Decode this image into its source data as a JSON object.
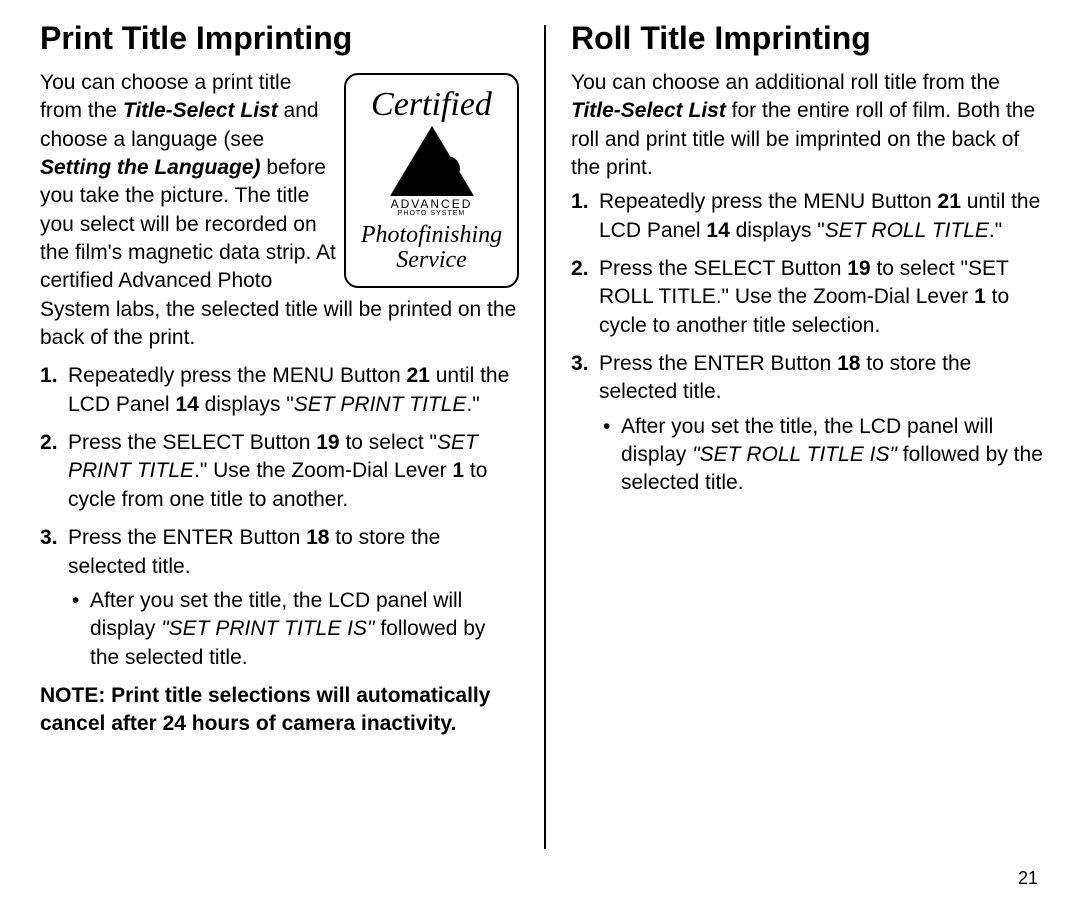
{
  "page_number": "21",
  "left": {
    "heading": "Print Title Imprinting",
    "intro_a": "You can choose a print title from the ",
    "intro_b": "Title-Select List",
    "intro_c": " and choose a language (see ",
    "intro_d": "Setting the Language)",
    "intro_e": " before you take the picture. The title you select will be recorded on the film's magnetic data strip. At certified Advanced Photo System labs, the selected title will be printed on the back of the print.",
    "logo": {
      "certified": "Certified",
      "advanced": "ADVANCED",
      "photo_system": "PHOTO SYSTEM",
      "tm": "™",
      "photofinishing": "Photofinishing",
      "service": "Service"
    },
    "s1a": "Repeatedly press the MENU Button ",
    "s1b": "21",
    "s1c": " until the LCD Panel ",
    "s1d": "14",
    "s1e": " displays \"",
    "s1f": "SET PRINT TITLE",
    "s1g": ".\"",
    "s2a": "Press the SELECT Button ",
    "s2b": "19",
    "s2c": " to select \"",
    "s2d": "SET PRINT TITLE",
    "s2e": ".\" Use the Zoom-Dial Lever ",
    "s2f": "1",
    "s2g": " to cycle from one title to another.",
    "s3a": "Press the ENTER Button ",
    "s3b": "18",
    "s3c": " to store the selected title.",
    "b1a": "After you set the title, the LCD panel will display ",
    "b1b": "\"SET PRINT TITLE IS\"",
    "b1c": " followed by the selected title.",
    "note": "NOTE: Print title selections will automatically cancel after 24 hours of camera inactivity."
  },
  "right": {
    "heading": "Roll Title Imprinting",
    "intro_a": "You can choose an additional roll title from the ",
    "intro_b": "Title-Select List",
    "intro_c": " for the entire roll of film. Both the roll and print title will be imprinted on the back of the print.",
    "s1a": "Repeatedly press the MENU Button ",
    "s1b": "21",
    "s1c": " until the LCD Panel ",
    "s1d": "14",
    "s1e": " displays \"",
    "s1f": "SET ROLL TITLE",
    "s1g": ".\"",
    "s2a": "Press the SELECT Button ",
    "s2b": "19",
    "s2c": " to select \"SET ROLL TITLE.\" Use the Zoom-Dial Lever ",
    "s2d": "1",
    "s2e": " to cycle to another title selection.",
    "s3a": "Press the ENTER Button ",
    "s3b": "18",
    "s3c": " to store the selected title.",
    "b1a": "After you set the title, the LCD panel will display ",
    "b1b": "\"SET ROLL TITLE IS\"",
    "b1c": " followed by the selected title."
  }
}
